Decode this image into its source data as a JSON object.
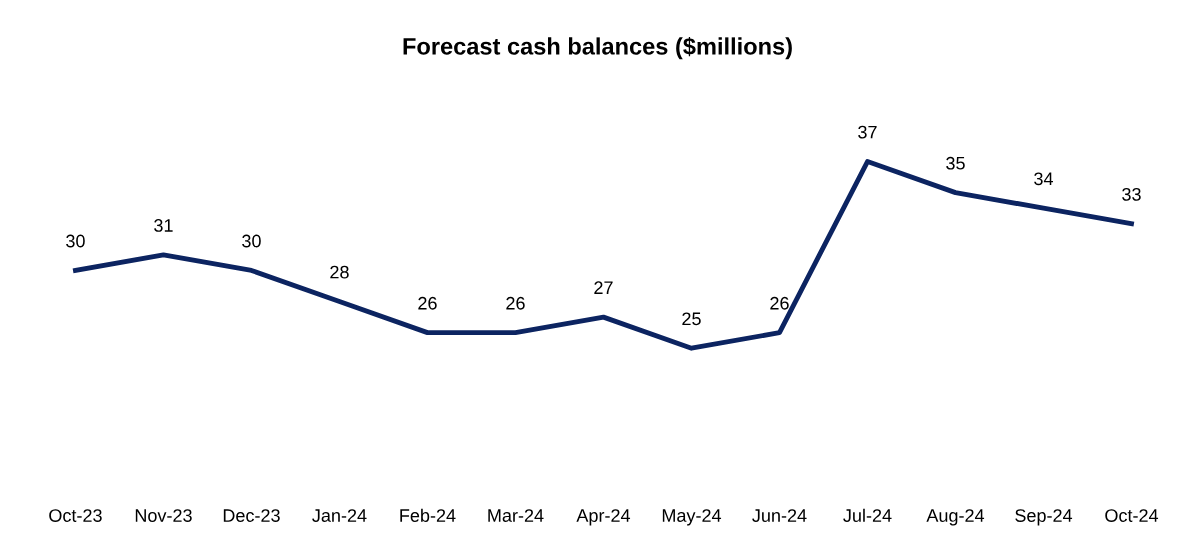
{
  "chart_data": {
    "type": "line",
    "title": "Forecast cash balances ($millions)",
    "categories": [
      "Oct-23",
      "Nov-23",
      "Dec-23",
      "Jan-24",
      "Feb-24",
      "Mar-24",
      "Apr-24",
      "May-24",
      "Jun-24",
      "Jul-24",
      "Aug-24",
      "Sep-24",
      "Oct-24"
    ],
    "series": [
      {
        "color": "#0c2461",
        "values": [
          30,
          31,
          30,
          28,
          26,
          26,
          27,
          25,
          26,
          37,
          35,
          34,
          33
        ]
      }
    ],
    "data_labels": true,
    "grid": false,
    "legend": false,
    "marker": "none",
    "line_style": "solid",
    "tick_labels": "x"
  }
}
